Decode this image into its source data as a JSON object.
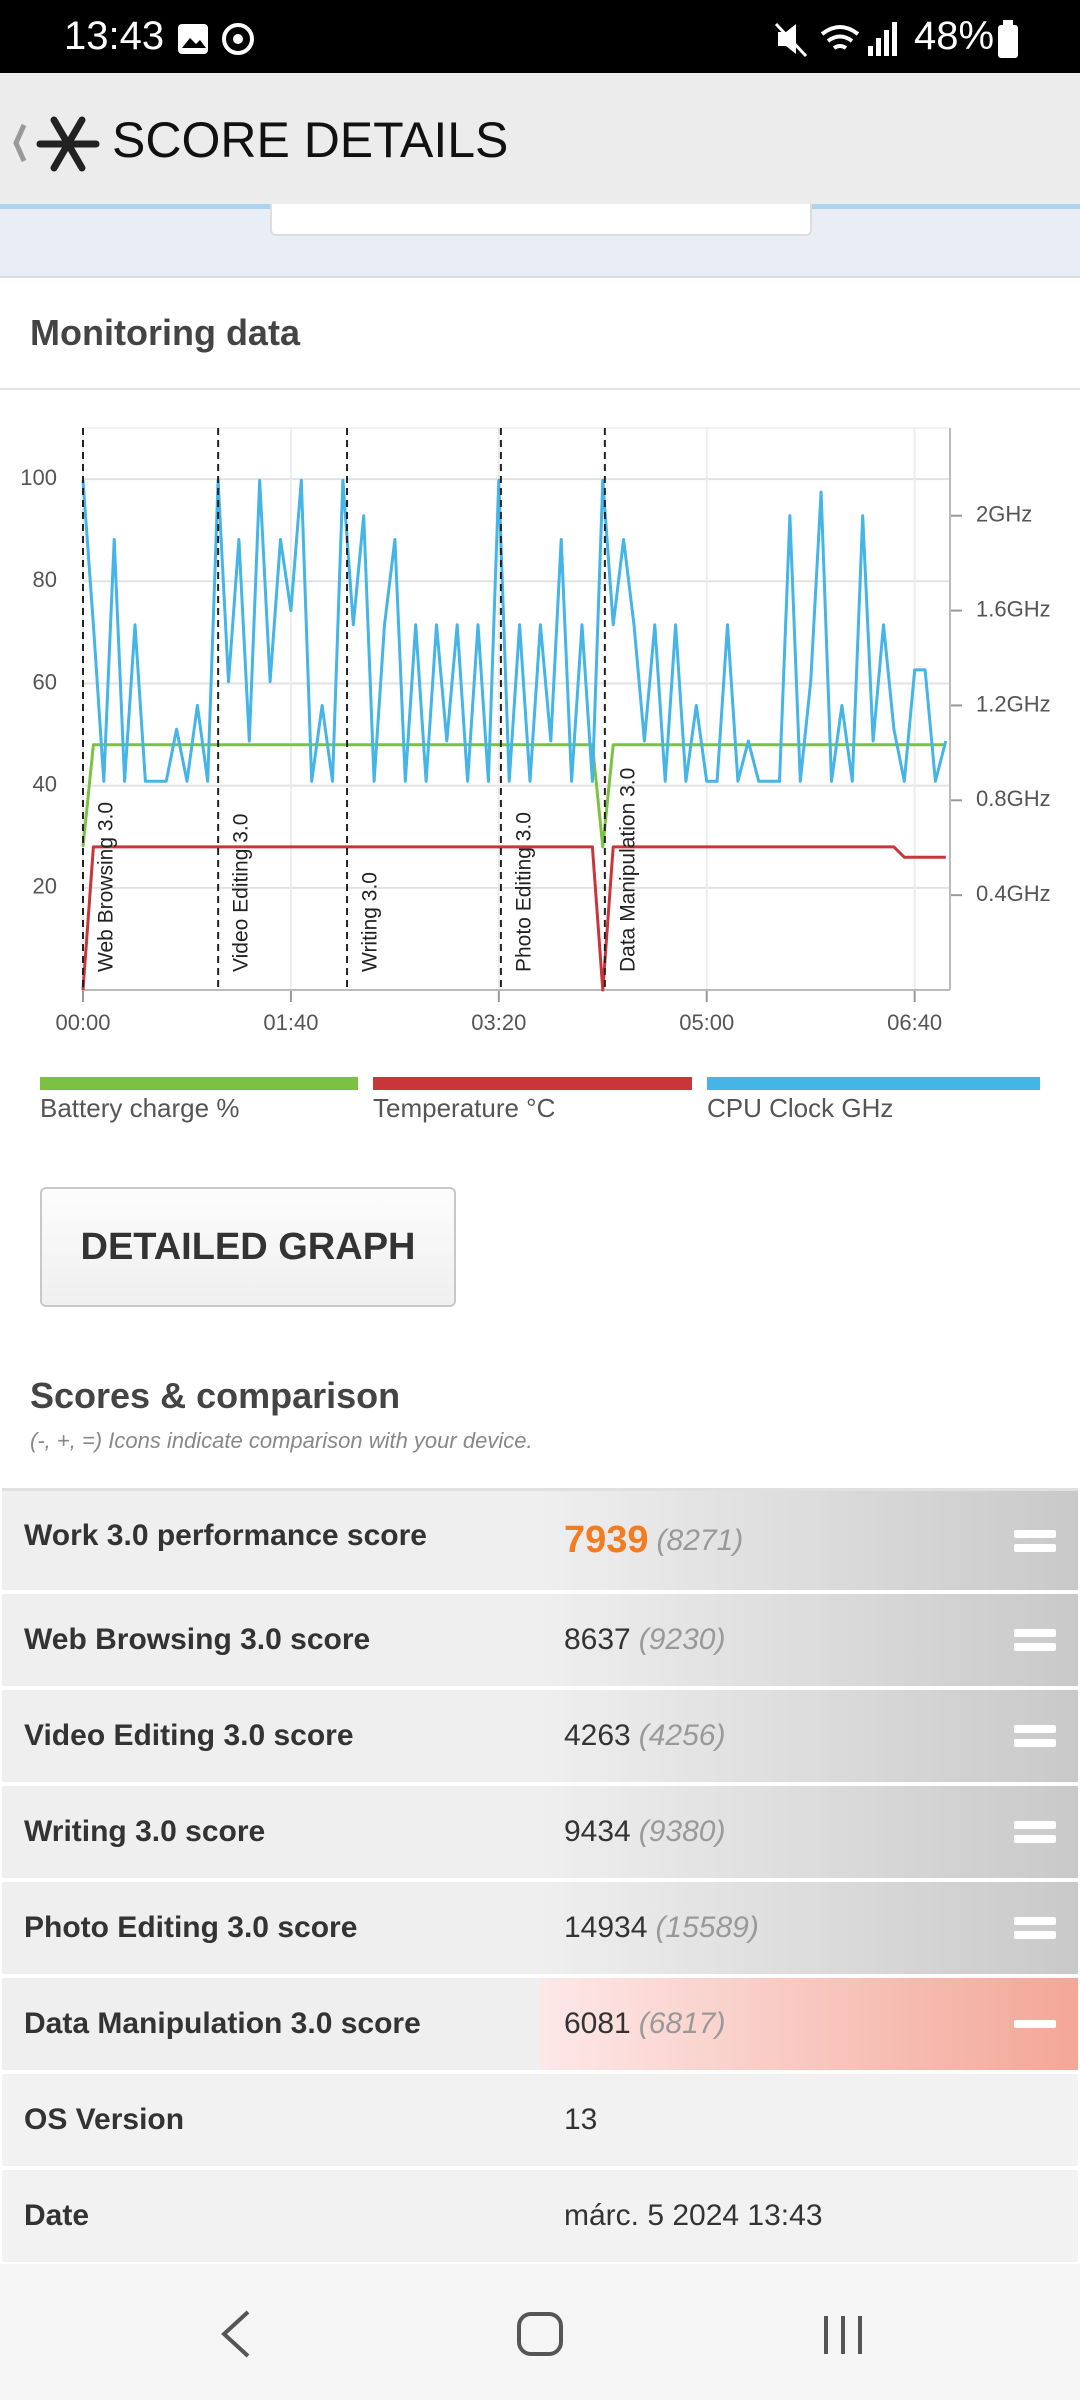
{
  "status_bar": {
    "time": "13:43",
    "battery": "48%"
  },
  "header": {
    "title": "SCORE DETAILS"
  },
  "monitoring": {
    "title": "Monitoring data",
    "chart": {
      "type": "line",
      "x": [
        0,
        5,
        10,
        15,
        20,
        25,
        30,
        35,
        40,
        45,
        50,
        55,
        60,
        65,
        70,
        75,
        80,
        85,
        90,
        95,
        100,
        105,
        110,
        115,
        120,
        125,
        130,
        135,
        140,
        145,
        150,
        155,
        160,
        165,
        170,
        175,
        180,
        185,
        190,
        195,
        200,
        205,
        210,
        215,
        220,
        225,
        230,
        235,
        240,
        245,
        250,
        255,
        260,
        265,
        270,
        275,
        280,
        285,
        290,
        295,
        300,
        305,
        310,
        315,
        320,
        325,
        330,
        335,
        340,
        345,
        350,
        355,
        360,
        365,
        370,
        375,
        380,
        385,
        390,
        395,
        400,
        405,
        410,
        415
      ],
      "xlim": [
        0,
        417
      ],
      "xticks": [
        {
          "value": 0,
          "label": "00:00"
        },
        {
          "value": 100,
          "label": "01:40"
        },
        {
          "value": 200,
          "label": "03:20"
        },
        {
          "value": 300,
          "label": "05:00"
        },
        {
          "value": 400,
          "label": "06:40"
        }
      ],
      "ylim": [
        0,
        110
      ],
      "yticks": [
        20,
        40,
        60,
        80,
        100
      ],
      "y2lim": [
        0,
        2.37
      ],
      "y2ticks": [
        {
          "value": 0.4,
          "label": "0.4GHz"
        },
        {
          "value": 0.8,
          "label": "0.8GHz"
        },
        {
          "value": 1.2,
          "label": "1.2GHz"
        },
        {
          "value": 1.6,
          "label": "1.6GHz"
        },
        {
          "value": 2.0,
          "label": "2GHz"
        }
      ],
      "grid": true,
      "markers": [
        {
          "x": 0,
          "label": "Web Browsing 3.0"
        },
        {
          "x": 65,
          "label": "Video Editing 3.0"
        },
        {
          "x": 127,
          "label": "Writing 3.0"
        },
        {
          "x": 201,
          "label": "Photo Editing 3.0"
        },
        {
          "x": 251,
          "label": "Data Manipulation 3.0"
        }
      ],
      "series": [
        {
          "name": "Battery charge %",
          "color": "#7cc142",
          "values": [
            28,
            48,
            48,
            48,
            48,
            48,
            48,
            48,
            48,
            48,
            48,
            48,
            48,
            48,
            48,
            48,
            48,
            48,
            48,
            48,
            48,
            48,
            48,
            48,
            48,
            48,
            48,
            48,
            48,
            48,
            48,
            48,
            48,
            48,
            48,
            48,
            48,
            48,
            48,
            48,
            48,
            48,
            48,
            48,
            48,
            48,
            48,
            48,
            48,
            48,
            28,
            48,
            48,
            48,
            48,
            48,
            48,
            48,
            48,
            48,
            48,
            48,
            48,
            48,
            48,
            48,
            48,
            48,
            48,
            48,
            48,
            48,
            48,
            48,
            48,
            48,
            48,
            48,
            48,
            48,
            48,
            48,
            48,
            48
          ]
        },
        {
          "name": "Temperature °C",
          "color": "#c8363a",
          "values": [
            0,
            28,
            28,
            28,
            28,
            28,
            28,
            28,
            28,
            28,
            28,
            28,
            28,
            28,
            28,
            28,
            28,
            28,
            28,
            28,
            28,
            28,
            28,
            28,
            28,
            28,
            28,
            28,
            28,
            28,
            28,
            28,
            28,
            28,
            28,
            28,
            28,
            28,
            28,
            28,
            28,
            28,
            28,
            28,
            28,
            28,
            28,
            28,
            28,
            28,
            0,
            28,
            28,
            28,
            28,
            28,
            28,
            28,
            28,
            28,
            28,
            28,
            28,
            28,
            28,
            28,
            28,
            28,
            28,
            28,
            28,
            28,
            28,
            28,
            28,
            28,
            28,
            28,
            28,
            26,
            26,
            26,
            26,
            26
          ]
        },
        {
          "name": "CPU Clock GHz",
          "color": "#45b4e6",
          "axis": "y2",
          "values": [
            2.15,
            1.54,
            0.88,
            1.9,
            0.88,
            1.54,
            0.88,
            0.88,
            0.88,
            1.1,
            0.88,
            1.2,
            0.88,
            2.15,
            1.3,
            1.9,
            1.05,
            2.15,
            1.3,
            1.9,
            1.6,
            2.15,
            0.88,
            1.2,
            0.88,
            2.15,
            1.54,
            2.0,
            0.88,
            1.54,
            1.9,
            0.88,
            1.54,
            0.88,
            1.54,
            1.05,
            1.54,
            0.88,
            1.54,
            0.88,
            2.15,
            0.88,
            1.54,
            0.88,
            1.54,
            1.05,
            1.9,
            0.88,
            1.54,
            0.88,
            2.15,
            1.54,
            1.9,
            1.54,
            1.05,
            1.54,
            0.88,
            1.54,
            0.88,
            1.2,
            0.88,
            0.88,
            1.54,
            0.88,
            1.05,
            0.88,
            0.88,
            0.88,
            2.0,
            0.88,
            1.3,
            2.1,
            0.88,
            1.2,
            0.88,
            2.0,
            1.05,
            1.54,
            1.1,
            0.88,
            1.35,
            1.35,
            0.88,
            1.05
          ]
        }
      ]
    }
  },
  "detailed_graph_button": "DETAILED GRAPH",
  "scores": {
    "title": "Scores & comparison",
    "note": "(-, +, =) Icons indicate comparison with your device.",
    "rows": [
      {
        "label": "Work 3.0 performance score",
        "score": 7939,
        "compare": "(8271)",
        "comparison": "equal",
        "main": true
      },
      {
        "label": "Web Browsing 3.0 score",
        "score": 8637,
        "compare": "(9230)",
        "comparison": "equal"
      },
      {
        "label": "Video Editing 3.0 score",
        "score": 4263,
        "compare": "(4256)",
        "comparison": "equal"
      },
      {
        "label": "Writing 3.0 score",
        "score": 9434,
        "compare": "(9380)",
        "comparison": "equal"
      },
      {
        "label": "Photo Editing 3.0 score",
        "score": 14934,
        "compare": "(15589)",
        "comparison": "equal"
      },
      {
        "label": "Data Manipulation 3.0 score",
        "score": 6081,
        "compare": "(6817)",
        "comparison": "lower"
      }
    ],
    "info": [
      {
        "label": "OS Version",
        "value": 13
      },
      {
        "label": "Date",
        "value": "márc. 5 2024 13:43"
      }
    ]
  }
}
